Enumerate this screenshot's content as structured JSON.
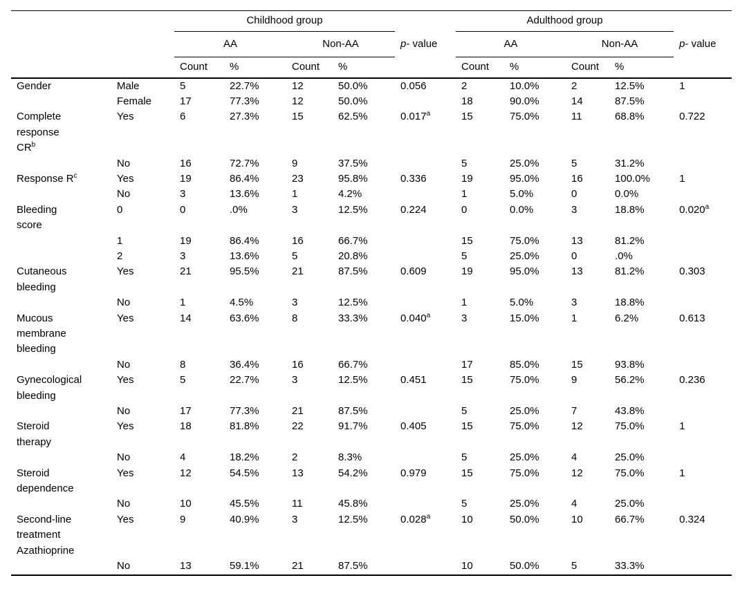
{
  "table": {
    "header": {
      "group_childhood": "Childhood group",
      "group_adulthood": "Adulthood group",
      "aa": "AA",
      "non_aa": "Non-AA",
      "p_italic": "p",
      "p_rest": "- value",
      "count": "Count",
      "percent": "%"
    },
    "rows": [
      [
        "Gender",
        "Male",
        "5",
        "22.7%",
        "12",
        "50.0%",
        "0.056",
        "2",
        "10.0%",
        "2",
        "12.5%",
        "1"
      ],
      [
        "",
        "Female",
        "17",
        "77.3%",
        "12",
        "50.0%",
        "",
        "18",
        "90.0%",
        "14",
        "87.5%",
        ""
      ],
      [
        "Complete\nresponse\nCR^b",
        "Yes",
        "6",
        "27.3%",
        "15",
        "62.5%",
        "0.017^a",
        "15",
        "75.0%",
        "11",
        "68.8%",
        "0.722"
      ],
      [
        "",
        "No",
        "16",
        "72.7%",
        "9",
        "37.5%",
        "",
        "5",
        "25.0%",
        "5",
        "31.2%",
        ""
      ],
      [
        "Response R^c",
        "Yes",
        "19",
        "86.4%",
        "23",
        "95.8%",
        "0.336",
        "19",
        "95.0%",
        "16",
        "100.0%",
        "1"
      ],
      [
        "",
        "No",
        "3",
        "13.6%",
        "1",
        "4.2%",
        "",
        "1",
        "5.0%",
        "0",
        "0.0%",
        ""
      ],
      [
        "Bleeding\nscore",
        "0",
        "0",
        ".0%",
        "3",
        "12.5%",
        "0.224",
        "0",
        "0.0%",
        "3",
        "18.8%",
        "0.020^a"
      ],
      [
        "",
        "1",
        "19",
        "86.4%",
        "16",
        "66.7%",
        "",
        "15",
        "75.0%",
        "13",
        "81.2%",
        ""
      ],
      [
        "",
        "2",
        "3",
        "13.6%",
        "5",
        "20.8%",
        "",
        "5",
        "25.0%",
        "0",
        ".0%",
        ""
      ],
      [
        "Cutaneous\nbleeding",
        "Yes",
        "21",
        "95.5%",
        "21",
        "87.5%",
        "0.609",
        "19",
        "95.0%",
        "13",
        "81.2%",
        "0.303"
      ],
      [
        "",
        "No",
        "1",
        "4.5%",
        "3",
        "12.5%",
        "",
        "1",
        "5.0%",
        "3",
        "18.8%",
        ""
      ],
      [
        "Mucous\nmembrane\nbleeding",
        "Yes",
        "14",
        "63.6%",
        "8",
        "33.3%",
        "0.040^a",
        "3",
        "15.0%",
        "1",
        "6.2%",
        "0.613"
      ],
      [
        "",
        "No",
        "8",
        "36.4%",
        "16",
        "66.7%",
        "",
        "17",
        "85.0%",
        "15",
        "93.8%",
        ""
      ],
      [
        "Gynecological\nbleeding",
        "Yes",
        "5",
        "22.7%",
        "3",
        "12.5%",
        "0.451",
        "15",
        "75.0%",
        "9",
        "56.2%",
        "0.236"
      ],
      [
        "",
        "No",
        "17",
        "77.3%",
        "21",
        "87.5%",
        "",
        "5",
        "25.0%",
        "7",
        "43.8%",
        ""
      ],
      [
        "Steroid\ntherapy",
        "Yes",
        "18",
        "81.8%",
        "22",
        "91.7%",
        "0.405",
        "15",
        "75.0%",
        "12",
        "75.0%",
        "1"
      ],
      [
        "",
        "No",
        "4",
        "18.2%",
        "2",
        "8.3%",
        "",
        "5",
        "25.0%",
        "4",
        "25.0%",
        ""
      ],
      [
        "Steroid\ndependence",
        "Yes",
        "12",
        "54.5%",
        "13",
        "54.2%",
        "0.979",
        "15",
        "75.0%",
        "12",
        "75.0%",
        "1"
      ],
      [
        "",
        "No",
        "10",
        "45.5%",
        "11",
        "45.8%",
        "",
        "5",
        "25.0%",
        "4",
        "25.0%",
        ""
      ],
      [
        "Second-line\ntreatment\nAzathioprine",
        "Yes",
        "9",
        "40.9%",
        "3",
        "12.5%",
        "0.028^a",
        "10",
        "50.0%",
        "10",
        "66.7%",
        "0.324"
      ],
      [
        "",
        "No",
        "13",
        "59.1%",
        "21",
        "87.5%",
        "",
        "10",
        "50.0%",
        "5",
        "33.3%",
        ""
      ]
    ]
  }
}
